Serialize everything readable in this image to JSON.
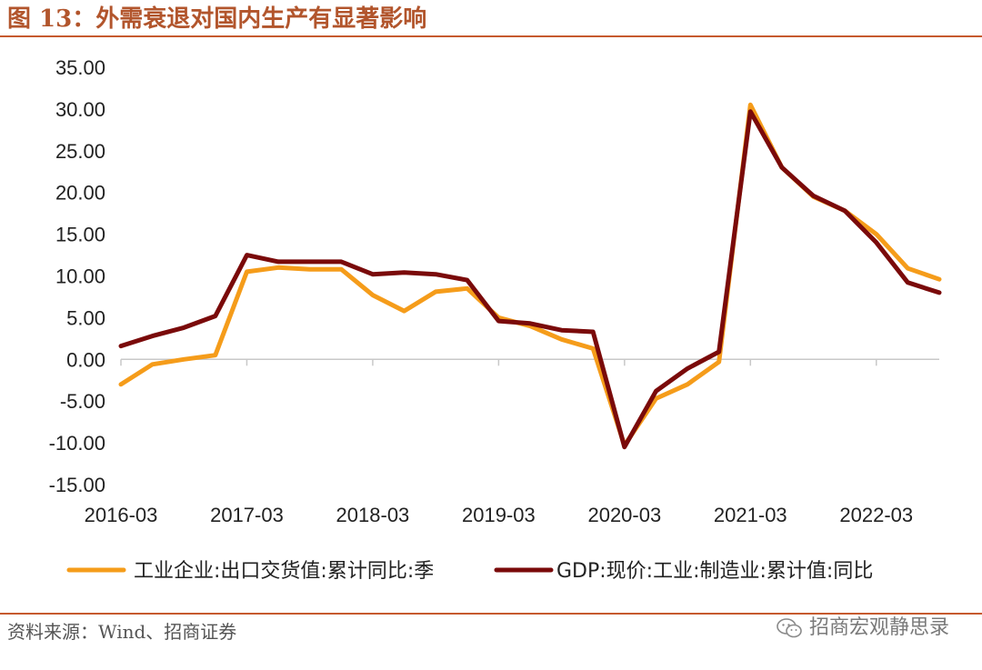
{
  "figure": {
    "title": "图 13：外需衰退对国内生产有显著影响",
    "source": "资料来源：Wind、招商证券",
    "watermark": "招商宏观静思录"
  },
  "colors": {
    "accent": "#c65a2e",
    "series_orange": "#f59c1a",
    "series_darkred": "#7a0a0a"
  },
  "chart_data": {
    "type": "line",
    "x": [
      "2016-03",
      "2016-06",
      "2016-09",
      "2016-12",
      "2017-03",
      "2017-06",
      "2017-09",
      "2017-12",
      "2018-03",
      "2018-06",
      "2018-09",
      "2018-12",
      "2019-03",
      "2019-06",
      "2019-09",
      "2019-12",
      "2020-03",
      "2020-06",
      "2020-09",
      "2020-12",
      "2021-03",
      "2021-06",
      "2021-09",
      "2021-12",
      "2022-03",
      "2022-06",
      "2022-09"
    ],
    "x_tick_labels": [
      "2016-03",
      "2017-03",
      "2018-03",
      "2019-03",
      "2020-03",
      "2021-03",
      "2022-03"
    ],
    "y_tick_labels": [
      "35.00",
      "30.00",
      "25.00",
      "20.00",
      "15.00",
      "10.00",
      "5.00",
      "0.00",
      "-5.00",
      "-10.00",
      "-15.00"
    ],
    "ylim": [
      -15,
      35
    ],
    "grid": false,
    "legend": "bottom",
    "series": [
      {
        "name": "工业企业:出口交货值:累计同比:季",
        "color": "#f59c1a",
        "values": [
          -3.0,
          -0.6,
          0.0,
          0.5,
          10.5,
          11.0,
          10.8,
          10.8,
          7.7,
          5.8,
          8.1,
          8.5,
          5.0,
          4.0,
          2.4,
          1.3,
          -10.3,
          -4.7,
          -3.0,
          -0.3,
          30.5,
          23.0,
          19.5,
          17.8,
          15.0,
          10.9,
          9.6
        ]
      },
      {
        "name": "GDP:现价:工业:制造业:累计值:同比",
        "color": "#7a0a0a",
        "values": [
          1.6,
          2.8,
          3.8,
          5.2,
          12.5,
          11.7,
          11.7,
          11.7,
          10.2,
          10.4,
          10.2,
          9.5,
          4.6,
          4.3,
          3.5,
          3.3,
          -10.5,
          -3.8,
          -1.1,
          0.9,
          29.7,
          23.0,
          19.6,
          17.8,
          14.0,
          9.2,
          8.0
        ]
      }
    ]
  }
}
